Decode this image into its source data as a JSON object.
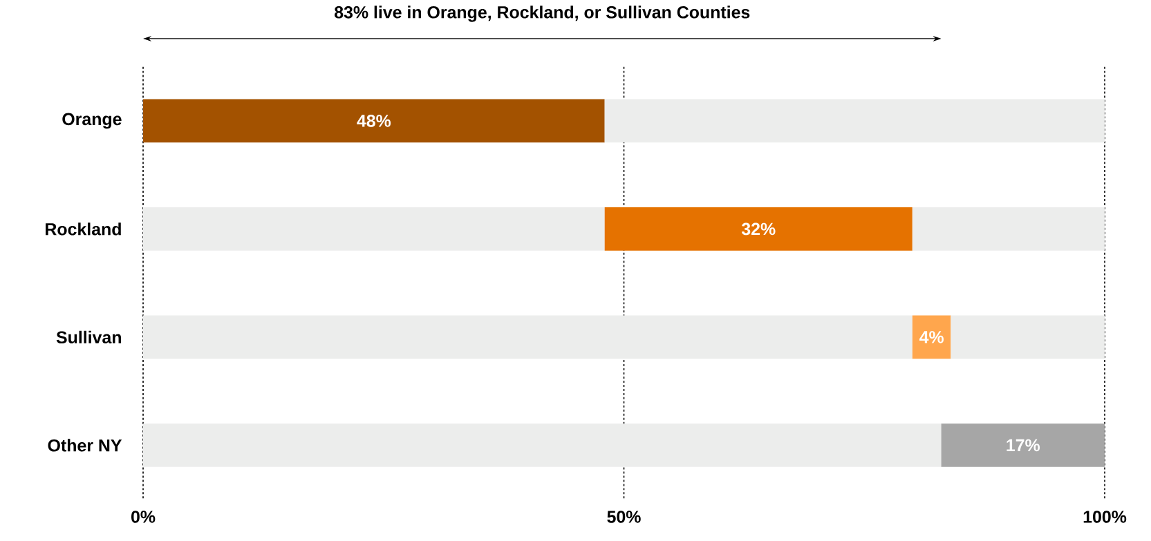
{
  "chart_data": {
    "type": "bar",
    "orientation": "horizontal",
    "stacked": true,
    "categories": [
      "Orange",
      "Rockland",
      "Sullivan",
      "Other NY"
    ],
    "series": [
      {
        "color": "#ecedec",
        "values": [
          0,
          48,
          80,
          83
        ]
      },
      {
        "colors": [
          "#a35200",
          "#e57200",
          "#ffa64d",
          "#a6a6a6"
        ],
        "values": [
          48,
          32,
          4,
          17
        ],
        "value_labels": [
          "48%",
          "32%",
          "4%",
          "17%"
        ]
      },
      {
        "color": "#ecedec",
        "values": [
          52,
          20,
          16,
          0
        ]
      }
    ],
    "xlim": [
      0,
      100
    ],
    "xticks": [
      {
        "value": 0,
        "label": "0%"
      },
      {
        "value": 50,
        "label": "50%"
      },
      {
        "value": 100,
        "label": "100%"
      }
    ],
    "grid": "x",
    "line_style": "dashed",
    "annotations": [
      "83% live in Orange, Rockland, or Sullivan Counties"
    ]
  }
}
